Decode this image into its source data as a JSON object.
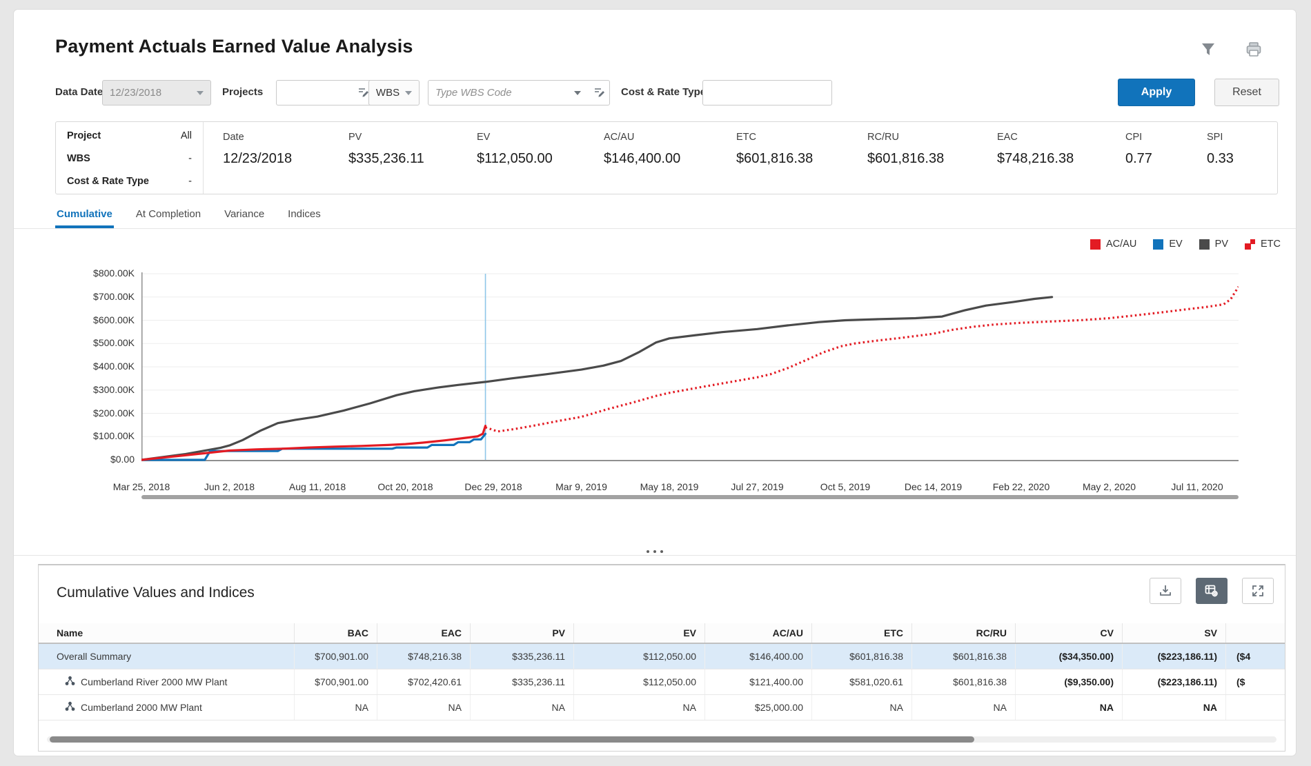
{
  "app": {
    "title": "Payment Actuals Earned Value Analysis"
  },
  "filters": {
    "data_date_label": "Data Date",
    "data_date_value": "12/23/2018",
    "projects_label": "Projects",
    "projects_value": "",
    "wbs_button_label": "WBS",
    "wbs_code_placeholder": "Type WBS Code",
    "cost_rate_label": "Cost & Rate Type",
    "cost_rate_value": "",
    "apply_label": "Apply",
    "reset_label": "Reset"
  },
  "summary": {
    "left": [
      {
        "label": "Project",
        "value": "All"
      },
      {
        "label": "WBS",
        "value": "-"
      },
      {
        "label": "Cost & Rate Type",
        "value": "-"
      }
    ],
    "metrics": [
      {
        "label": "Date",
        "value": "12/23/2018"
      },
      {
        "label": "PV",
        "value": "$335,236.11"
      },
      {
        "label": "EV",
        "value": "$112,050.00"
      },
      {
        "label": "AC/AU",
        "value": "$146,400.00"
      },
      {
        "label": "ETC",
        "value": "$601,816.38"
      },
      {
        "label": "RC/RU",
        "value": "$601,816.38"
      },
      {
        "label": "EAC",
        "value": "$748,216.38"
      },
      {
        "label": "CPI",
        "value": "0.77"
      },
      {
        "label": "SPI",
        "value": "0.33"
      }
    ]
  },
  "tabs": [
    {
      "label": "Cumulative",
      "active": true
    },
    {
      "label": "At Completion",
      "active": false
    },
    {
      "label": "Variance",
      "active": false
    },
    {
      "label": "Indices",
      "active": false
    }
  ],
  "chart_data": {
    "type": "line",
    "title": "",
    "ylabel": "",
    "xlabel": "",
    "ylim_usd": [
      0,
      800000
    ],
    "grid": true,
    "legend_position": "top-right",
    "y_tick_labels": [
      "$800.00K",
      "$700.00K",
      "$600.00K",
      "$500.00K",
      "$400.00K",
      "$300.00K",
      "$200.00K",
      "$100.00K",
      "$0.00"
    ],
    "x_tick_labels": [
      "Mar 25, 2018",
      "Jun 2, 2018",
      "Aug 11, 2018",
      "Oct 20, 2018",
      "Dec 29, 2018",
      "Mar 9, 2019",
      "May 18, 2019",
      "Jul 27, 2019",
      "Oct 5, 2019",
      "Dec 14, 2019",
      "Feb 22, 2020",
      "May 2, 2020",
      "Jul 11, 2020"
    ],
    "data_date": "12/23/2018",
    "data_date_x_tick": 3.91,
    "data_date_line_color": "#8ec6e8",
    "legend": [
      {
        "label": "AC/AU",
        "color": "#e31b23",
        "swatch": "square"
      },
      {
        "label": "EV",
        "color": "#1173bb",
        "swatch": "square"
      },
      {
        "label": "PV",
        "color": "#4a4a4a",
        "swatch": "square"
      },
      {
        "label": "ETC",
        "color": "#e31b23",
        "swatch": "dotted"
      }
    ],
    "series": [
      {
        "name": "PV",
        "color": "#4a4a4a",
        "style": "solid",
        "units": "USD thousands",
        "points": [
          [
            0,
            0
          ],
          [
            0.5,
            25
          ],
          [
            0.9,
            52
          ],
          [
            1,
            62
          ],
          [
            1.15,
            85
          ],
          [
            1.35,
            125
          ],
          [
            1.55,
            158
          ],
          [
            1.75,
            172
          ],
          [
            2,
            186
          ],
          [
            2.3,
            212
          ],
          [
            2.6,
            243
          ],
          [
            2.9,
            278
          ],
          [
            3.1,
            295
          ],
          [
            3.35,
            310
          ],
          [
            3.6,
            322
          ],
          [
            3.91,
            335
          ],
          [
            4.2,
            350
          ],
          [
            4.6,
            368
          ],
          [
            5,
            388
          ],
          [
            5.25,
            405
          ],
          [
            5.45,
            425
          ],
          [
            5.65,
            462
          ],
          [
            5.85,
            505
          ],
          [
            6,
            522
          ],
          [
            6.3,
            536
          ],
          [
            6.6,
            549
          ],
          [
            7,
            562
          ],
          [
            7.35,
            578
          ],
          [
            7.7,
            592
          ],
          [
            8,
            600
          ],
          [
            8.4,
            605
          ],
          [
            8.8,
            609
          ],
          [
            9.1,
            616
          ],
          [
            9.35,
            642
          ],
          [
            9.6,
            663
          ],
          [
            9.9,
            678
          ],
          [
            10.15,
            692
          ],
          [
            10.35,
            700
          ]
        ]
      },
      {
        "name": "EV",
        "color": "#1173bb",
        "style": "solid",
        "units": "USD thousands",
        "points": [
          [
            0,
            0
          ],
          [
            0.72,
            0
          ],
          [
            0.78,
            38
          ],
          [
            1.55,
            38
          ],
          [
            1.6,
            48
          ],
          [
            2.85,
            48
          ],
          [
            2.9,
            53
          ],
          [
            3.25,
            53
          ],
          [
            3.3,
            64
          ],
          [
            3.55,
            64
          ],
          [
            3.6,
            76
          ],
          [
            3.73,
            76
          ],
          [
            3.78,
            88
          ],
          [
            3.86,
            88
          ],
          [
            3.91,
            112
          ]
        ]
      },
      {
        "name": "AC/AU",
        "color": "#e31b23",
        "style": "solid",
        "units": "USD thousands",
        "points": [
          [
            0,
            0
          ],
          [
            0.35,
            14
          ],
          [
            0.7,
            28
          ],
          [
            1,
            40
          ],
          [
            1.3,
            45
          ],
          [
            1.6,
            48
          ],
          [
            1.9,
            53
          ],
          [
            2.2,
            57
          ],
          [
            2.5,
            60
          ],
          [
            2.8,
            64
          ],
          [
            3,
            68
          ],
          [
            3.2,
            74
          ],
          [
            3.45,
            84
          ],
          [
            3.65,
            93
          ],
          [
            3.82,
            101
          ],
          [
            3.88,
            112
          ],
          [
            3.91,
            146.4
          ]
        ]
      },
      {
        "name": "ETC",
        "color": "#e31b23",
        "style": "dotted",
        "units": "USD thousands",
        "points": [
          [
            3.91,
            140
          ],
          [
            4.05,
            122
          ],
          [
            4.25,
            133
          ],
          [
            4.5,
            150
          ],
          [
            4.75,
            168
          ],
          [
            5,
            185
          ],
          [
            5.3,
            218
          ],
          [
            5.6,
            248
          ],
          [
            5.85,
            275
          ],
          [
            6,
            288
          ],
          [
            6.35,
            312
          ],
          [
            6.7,
            335
          ],
          [
            7,
            355
          ],
          [
            7.15,
            368
          ],
          [
            7.35,
            395
          ],
          [
            7.55,
            428
          ],
          [
            7.75,
            462
          ],
          [
            7.95,
            488
          ],
          [
            8.1,
            500
          ],
          [
            8.35,
            512
          ],
          [
            8.65,
            525
          ],
          [
            9,
            542
          ],
          [
            9.2,
            558
          ],
          [
            9.45,
            572
          ],
          [
            9.7,
            582
          ],
          [
            10,
            589
          ],
          [
            10.35,
            595
          ],
          [
            10.7,
            601
          ],
          [
            11,
            609
          ],
          [
            11.3,
            621
          ],
          [
            11.6,
            634
          ],
          [
            11.9,
            648
          ],
          [
            12.1,
            657
          ],
          [
            12.3,
            668
          ],
          [
            12.38,
            690
          ],
          [
            12.43,
            720
          ],
          [
            12.47,
            744
          ]
        ]
      }
    ]
  },
  "table": {
    "title": "Cumulative Values and Indices",
    "columns": [
      "Name",
      "BAC",
      "EAC",
      "PV",
      "EV",
      "AC/AU",
      "ETC",
      "RC/RU",
      "CV",
      "SV",
      ""
    ],
    "rows": [
      {
        "name": "Overall Summary",
        "has_icon": false,
        "selected": true,
        "values": [
          "$700,901.00",
          "$748,216.38",
          "$335,236.11",
          "$112,050.00",
          "$146,400.00",
          "$601,816.38",
          "$601,816.38",
          "($34,350.00)",
          "($223,186.11)",
          "($4"
        ]
      },
      {
        "name": "Cumberland River 2000 MW Plant",
        "has_icon": true,
        "selected": false,
        "values": [
          "$700,901.00",
          "$702,420.61",
          "$335,236.11",
          "$112,050.00",
          "$121,400.00",
          "$581,020.61",
          "$601,816.38",
          "($9,350.00)",
          "($223,186.11)",
          "($"
        ]
      },
      {
        "name": "Cumberland 2000 MW Plant",
        "has_icon": true,
        "selected": false,
        "values": [
          "NA",
          "NA",
          "NA",
          "NA",
          "$25,000.00",
          "NA",
          "NA",
          "NA",
          "NA",
          ""
        ]
      }
    ]
  },
  "colors": {
    "accent_blue": "#1173bb",
    "series_red": "#e31b23",
    "series_gray": "#4a4a4a",
    "selected_row_bg": "#dbeaf8"
  }
}
